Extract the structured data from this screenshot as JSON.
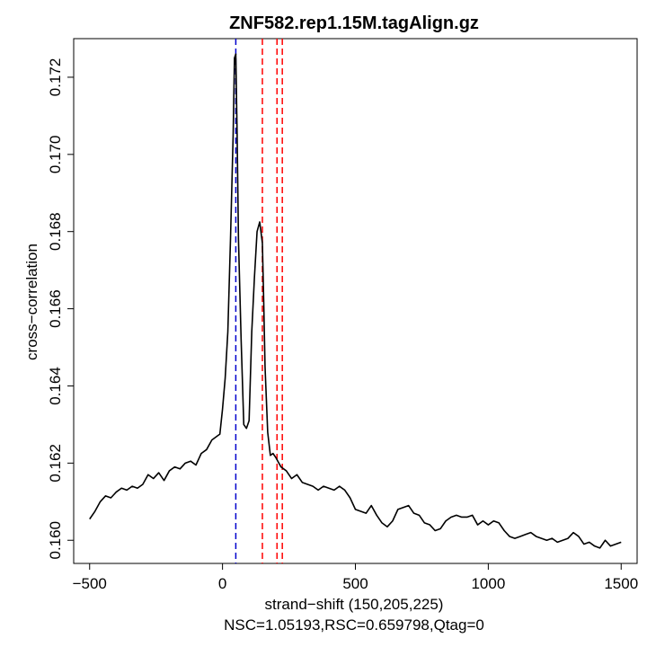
{
  "chart_data": {
    "type": "line",
    "title": "ZNF582.rep1.15M.tagAlign.gz",
    "xlabel": "strand−shift (150,205,225)",
    "ylabel": "cross−correlation",
    "sublabel": "NSC=1.05193,RSC=0.659798,Qtag=0",
    "xlim": [
      -560,
      1560
    ],
    "ylim": [
      0.1594,
      0.173
    ],
    "x_ticks": [
      -500,
      0,
      500,
      1000,
      1500
    ],
    "x_tick_labels": [
      "−500",
      "0",
      "500",
      "1000",
      "1500"
    ],
    "y_ticks": [
      0.16,
      0.162,
      0.164,
      0.166,
      0.168,
      0.17,
      0.172
    ],
    "y_tick_labels": [
      "0.160",
      "0.162",
      "0.164",
      "0.166",
      "0.168",
      "0.170",
      "0.172"
    ],
    "series": [
      {
        "name": "cross-correlation",
        "color": "#000000",
        "x": [
          -500,
          -480,
          -460,
          -440,
          -420,
          -400,
          -380,
          -360,
          -340,
          -320,
          -300,
          -280,
          -260,
          -240,
          -220,
          -200,
          -180,
          -160,
          -140,
          -120,
          -100,
          -80,
          -60,
          -40,
          -20,
          -10,
          0,
          10,
          20,
          30,
          40,
          45,
          50,
          55,
          60,
          70,
          80,
          90,
          100,
          110,
          120,
          130,
          140,
          150,
          155,
          160,
          170,
          180,
          190,
          200,
          220,
          240,
          260,
          280,
          300,
          320,
          340,
          360,
          380,
          400,
          420,
          440,
          460,
          480,
          500,
          520,
          540,
          560,
          580,
          600,
          620,
          640,
          660,
          680,
          700,
          720,
          740,
          760,
          780,
          800,
          820,
          840,
          860,
          880,
          900,
          920,
          940,
          960,
          980,
          1000,
          1020,
          1040,
          1060,
          1080,
          1100,
          1120,
          1140,
          1160,
          1180,
          1200,
          1220,
          1240,
          1260,
          1280,
          1300,
          1320,
          1340,
          1360,
          1380,
          1400,
          1420,
          1440,
          1460,
          1480,
          1500
        ],
        "y": [
          0.16055,
          0.16075,
          0.161,
          0.16115,
          0.1611,
          0.16125,
          0.16135,
          0.1613,
          0.1614,
          0.16135,
          0.16145,
          0.1617,
          0.1616,
          0.16175,
          0.16155,
          0.1618,
          0.1619,
          0.16185,
          0.162,
          0.16205,
          0.16195,
          0.16225,
          0.16235,
          0.1626,
          0.1627,
          0.16275,
          0.1634,
          0.1642,
          0.1654,
          0.1678,
          0.1705,
          0.1725,
          0.1726,
          0.1705,
          0.1678,
          0.1652,
          0.163,
          0.1629,
          0.1631,
          0.1654,
          0.1668,
          0.168,
          0.16825,
          0.1677,
          0.1662,
          0.1645,
          0.1628,
          0.1622,
          0.16225,
          0.16215,
          0.1619,
          0.1618,
          0.1616,
          0.1617,
          0.1615,
          0.16145,
          0.1614,
          0.1613,
          0.1614,
          0.16135,
          0.1613,
          0.1614,
          0.1613,
          0.1611,
          0.1608,
          0.16075,
          0.1607,
          0.1609,
          0.16065,
          0.16045,
          0.16035,
          0.1605,
          0.1608,
          0.16085,
          0.1609,
          0.1607,
          0.16065,
          0.16045,
          0.1604,
          0.16025,
          0.1603,
          0.1605,
          0.1606,
          0.16065,
          0.1606,
          0.1606,
          0.16065,
          0.1604,
          0.1605,
          0.1604,
          0.1605,
          0.16045,
          0.16025,
          0.1601,
          0.16005,
          0.1601,
          0.16015,
          0.1602,
          0.1601,
          0.16005,
          0.16,
          0.16005,
          0.15995,
          0.16,
          0.16005,
          0.1602,
          0.1601,
          0.1599,
          0.15995,
          0.15985,
          0.1598,
          0.16,
          0.15985,
          0.1599,
          0.15995
        ]
      }
    ],
    "vlines": [
      {
        "name": "blue-dashed-line",
        "x": 50,
        "color": "#0000cc"
      },
      {
        "name": "red-dashed-line-150",
        "x": 150,
        "color": "#ff0000"
      },
      {
        "name": "red-dashed-line-205",
        "x": 205,
        "color": "#ff0000"
      },
      {
        "name": "red-dashed-line-225",
        "x": 225,
        "color": "#ff0000"
      }
    ]
  }
}
